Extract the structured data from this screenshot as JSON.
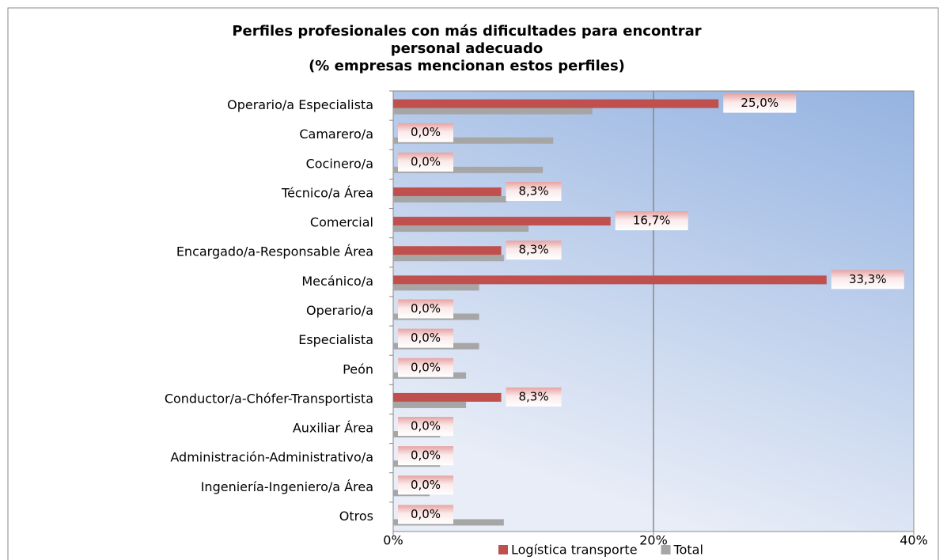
{
  "chart_data": {
    "type": "bar",
    "orientation": "horizontal",
    "title": [
      "Perfiles profesionales con más dificultades para encontrar",
      "personal adecuado",
      "(% empresas mencionan estos perfiles)"
    ],
    "categories": [
      "Operario/a Especialista",
      "Camarero/a",
      "Cocinero/a",
      "Técnico/a Área",
      "Comercial",
      "Encargado/a-Responsable Área",
      "Mecánico/a",
      "Operario/a",
      "Especialista",
      "Peón",
      "Conductor/a-Chófer-Transportista",
      "Auxiliar Área",
      "Administración-Administrativo/a",
      "Ingeniería-Ingeniero/a Área",
      "Otros"
    ],
    "series": [
      {
        "name": "Logística transporte",
        "color": "#c0504d",
        "values": [
          25.0,
          0,
          0,
          8.3,
          16.7,
          8.3,
          33.3,
          0,
          0,
          0,
          8.3,
          0,
          0,
          0,
          0
        ],
        "value_labels": [
          "25,0%",
          "0,0%",
          "0,0%",
          "8,3%",
          "16,7%",
          "8,3%",
          "33,3%",
          "0,0%",
          "0,0%",
          "0,0%",
          "8,3%",
          "0,0%",
          "0,0%",
          "0,0%",
          "0,0%"
        ]
      },
      {
        "name": "Total",
        "color": "#a6a6a6",
        "values": [
          15.3,
          12.3,
          11.5,
          8.7,
          10.4,
          8.5,
          6.6,
          6.6,
          6.6,
          5.6,
          5.6,
          3.6,
          3.6,
          2.8,
          8.5
        ]
      }
    ],
    "xlim": [
      0,
      40
    ],
    "xticks": [
      {
        "value": 0,
        "label": "0%"
      },
      {
        "value": 20,
        "label": "20%"
      },
      {
        "value": 40,
        "label": "40%"
      }
    ],
    "grid": true,
    "legend": "bottom"
  }
}
